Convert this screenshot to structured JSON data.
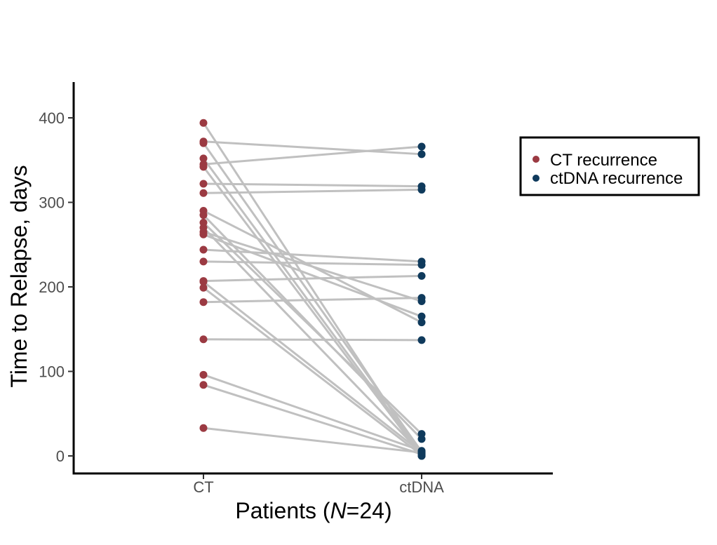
{
  "chart_data": {
    "type": "line",
    "subtype": "paired-dot (slope) plot",
    "categories": [
      "CT",
      "ctDNA"
    ],
    "ylim": [
      -20,
      440
    ],
    "yticks": [
      0,
      100,
      200,
      300,
      400
    ],
    "ylabel": "Time to Relapse, days",
    "xlabel": {
      "prefix": "Patients (",
      "italic": "N",
      "suffix": "=24)"
    },
    "legend": {
      "position": "right",
      "entries": [
        {
          "label": "CT recurrence",
          "color": "#9b3a42"
        },
        {
          "label": "ctDNA recurrence",
          "color": "#0f3a5c"
        }
      ]
    },
    "line_color": "#c0c0c0",
    "pairs": [
      {
        "ct": 394,
        "ctdna": 0
      },
      {
        "ct": 372,
        "ctdna": 357
      },
      {
        "ct": 370,
        "ctdna": 5
      },
      {
        "ct": 352,
        "ctdna": 2
      },
      {
        "ct": 345,
        "ctdna": 366
      },
      {
        "ct": 342,
        "ctdna": 0
      },
      {
        "ct": 322,
        "ctdna": 319
      },
      {
        "ct": 311,
        "ctdna": 315
      },
      {
        "ct": 290,
        "ctdna": 158
      },
      {
        "ct": 285,
        "ctdna": 20
      },
      {
        "ct": 276,
        "ctdna": 26
      },
      {
        "ct": 270,
        "ctdna": 3
      },
      {
        "ct": 265,
        "ctdna": 183
      },
      {
        "ct": 262,
        "ctdna": 165
      },
      {
        "ct": 244,
        "ctdna": 230
      },
      {
        "ct": 230,
        "ctdna": 226
      },
      {
        "ct": 207,
        "ctdna": 213
      },
      {
        "ct": 206,
        "ctdna": 4
      },
      {
        "ct": 199,
        "ctdna": 1
      },
      {
        "ct": 182,
        "ctdna": 187
      },
      {
        "ct": 138,
        "ctdna": 137
      },
      {
        "ct": 96,
        "ctdna": 6
      },
      {
        "ct": 84,
        "ctdna": 2
      },
      {
        "ct": 33,
        "ctdna": 4
      }
    ]
  }
}
